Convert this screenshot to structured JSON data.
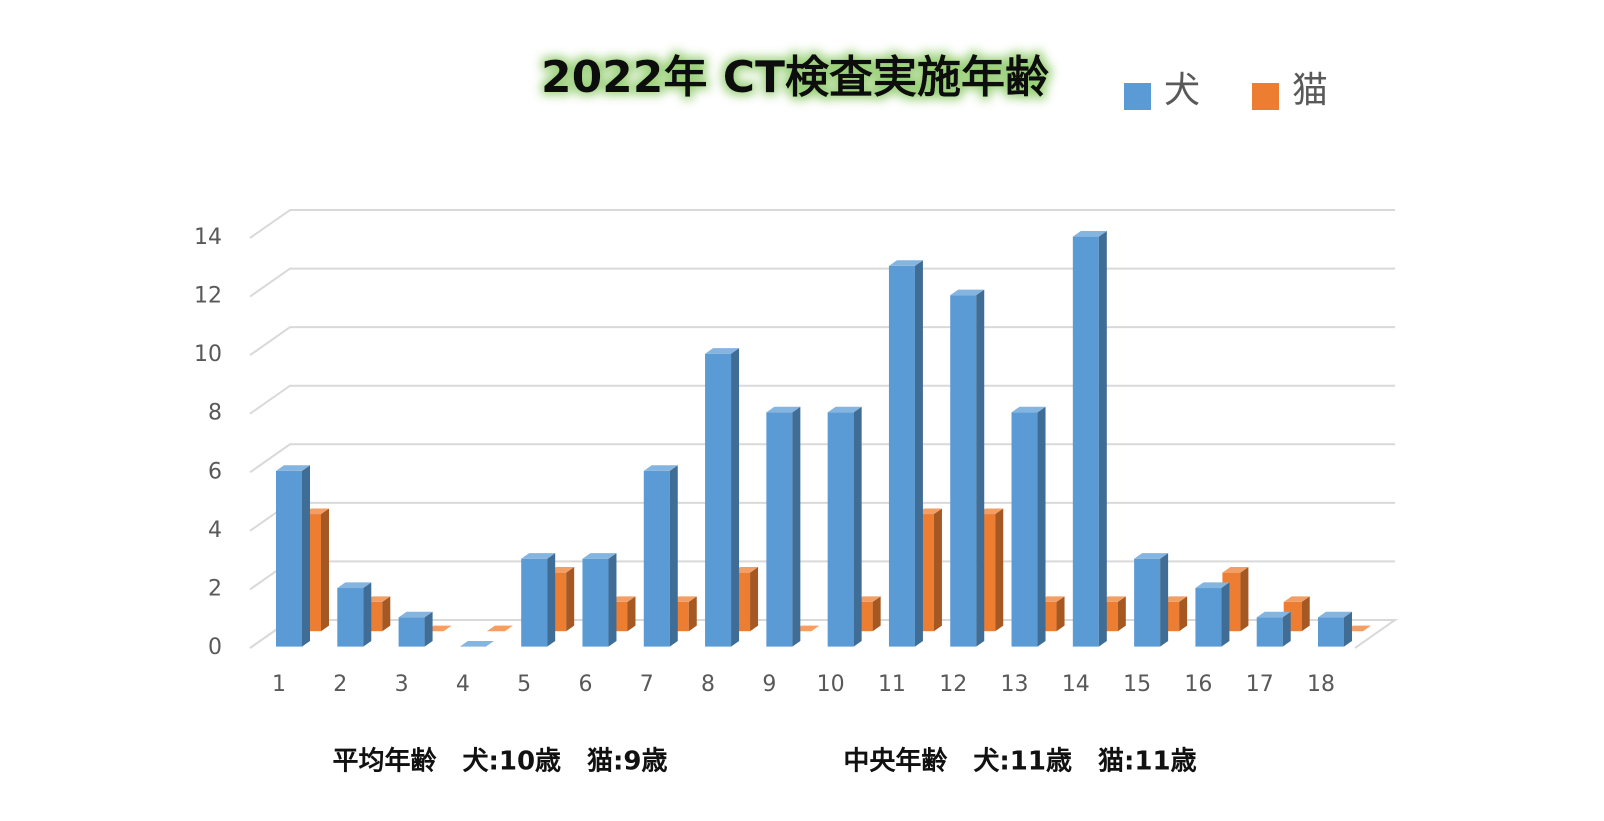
{
  "chart_data": {
    "type": "bar3d",
    "title": "2022年 CT検査実施年齢",
    "categories": [
      1,
      2,
      3,
      4,
      5,
      6,
      7,
      8,
      9,
      10,
      11,
      12,
      13,
      14,
      15,
      16,
      17,
      18
    ],
    "series": [
      {
        "name": "犬",
        "color": "#5b9bd5",
        "values": [
          6,
          2,
          1,
          0,
          3,
          3,
          6,
          10,
          8,
          8,
          13,
          12,
          8,
          14,
          3,
          2,
          1,
          1
        ]
      },
      {
        "name": "猫",
        "color": "#ed7d31",
        "values": [
          4,
          1,
          0,
          0,
          2,
          1,
          1,
          2,
          0,
          1,
          4,
          4,
          1,
          1,
          1,
          2,
          1,
          0
        ]
      }
    ],
    "ylim": [
      0,
      14
    ],
    "yticks": [
      0,
      2,
      4,
      6,
      8,
      10,
      12,
      14
    ],
    "grid": true,
    "legend": "top-right",
    "footnotes": [
      "平均年齢　犬:10歳　猫:9歳",
      "中央年齢　犬:11歳　猫:11歳"
    ]
  }
}
